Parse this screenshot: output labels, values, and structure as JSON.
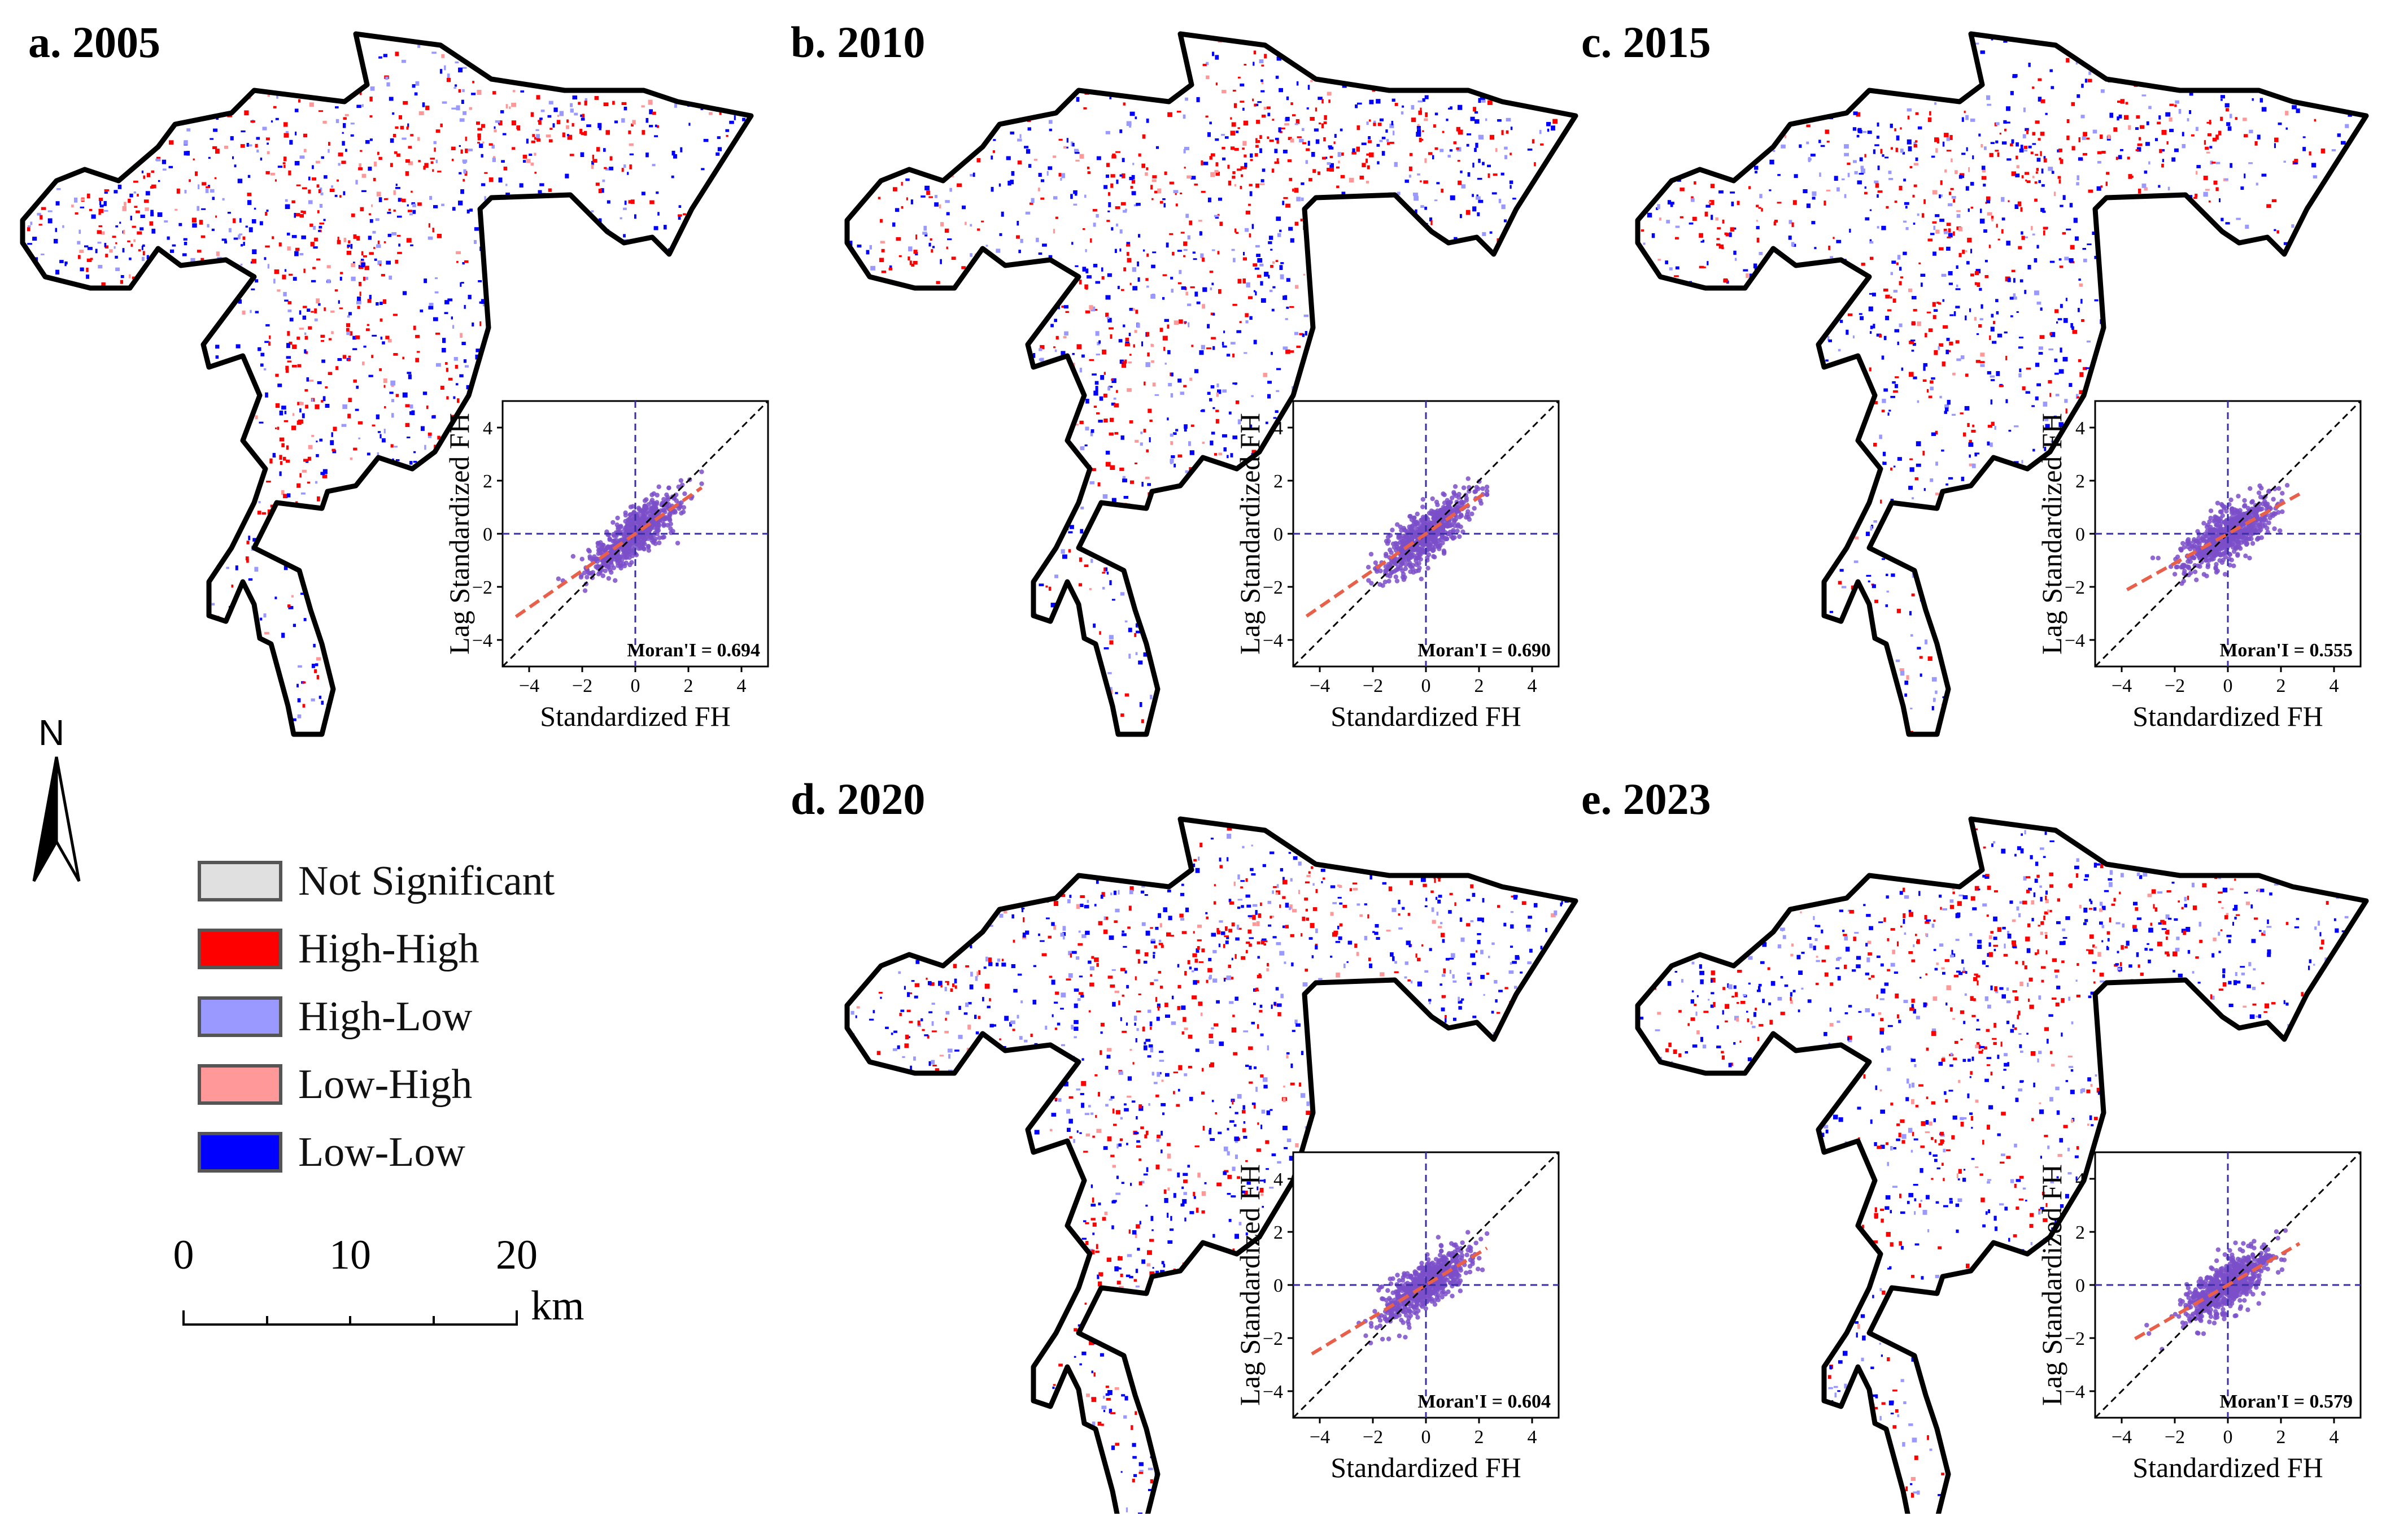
{
  "panels": [
    {
      "id": "a",
      "title": "a. 2005",
      "moran_label": "Moran'I = 0.694",
      "moran_i": 0.694,
      "red_weight": 0.55
    },
    {
      "id": "b",
      "title": "b. 2010",
      "moran_label": "Moran'I = 0.690",
      "moran_i": 0.69,
      "red_weight": 0.45
    },
    {
      "id": "c",
      "title": "c. 2015",
      "moran_label": "Moran'I = 0.555",
      "moran_i": 0.555,
      "red_weight": 0.38
    },
    {
      "id": "d",
      "title": "d. 2020",
      "moran_label": "Moran'I = 0.604",
      "moran_i": 0.604,
      "red_weight": 0.4
    },
    {
      "id": "e",
      "title": "e. 2023",
      "moran_label": "Moran'I = 0.579",
      "moran_i": 0.579,
      "red_weight": 0.4
    }
  ],
  "legend": {
    "items": [
      {
        "label": "Not Significant",
        "color": "#e0e0e0"
      },
      {
        "label": "High-High",
        "color": "#ff0000"
      },
      {
        "label": "High-Low",
        "color": "#9999ff"
      },
      {
        "label": "Low-High",
        "color": "#ff9999"
      },
      {
        "label": "Low-Low",
        "color": "#0000ff"
      }
    ]
  },
  "north_arrow": {
    "label": "N"
  },
  "scale_bar": {
    "ticks": [
      "0",
      "10",
      "20"
    ],
    "unit": "km"
  },
  "chart_data": [
    {
      "type": "scatter",
      "panel": "a. 2005",
      "xlabel": "Standardized FH",
      "ylabel": "Lag Standardized FH",
      "xlim": [
        -5,
        5
      ],
      "ylim": [
        -5,
        5
      ],
      "xticks": [
        -4,
        -2,
        0,
        2,
        4
      ],
      "yticks": [
        -4,
        -2,
        0,
        2,
        4
      ],
      "tick_labels": [
        "−4",
        "−2",
        "0",
        "2",
        "4"
      ],
      "annotation": "Moran'I = 0.694",
      "regression_slope": 0.694,
      "reference_line_slope": 1,
      "point_cloud_x_range": [
        -4.5,
        2.5
      ]
    },
    {
      "type": "scatter",
      "panel": "b. 2010",
      "xlabel": "Standardized FH",
      "ylabel": "Lag Standardized FH",
      "xlim": [
        -5,
        5
      ],
      "ylim": [
        -5,
        5
      ],
      "xticks": [
        -4,
        -2,
        0,
        2,
        4
      ],
      "yticks": [
        -4,
        -2,
        0,
        2,
        4
      ],
      "tick_labels": [
        "−4",
        "−2",
        "0",
        "2",
        "4"
      ],
      "annotation": "Moran'I = 0.690",
      "regression_slope": 0.69,
      "reference_line_slope": 1,
      "point_cloud_x_range": [
        -4.5,
        2.3
      ]
    },
    {
      "type": "scatter",
      "panel": "c. 2015",
      "xlabel": "Standardized FH",
      "ylabel": "Lag Standardized FH",
      "xlim": [
        -5,
        5
      ],
      "ylim": [
        -5,
        5
      ],
      "xticks": [
        -4,
        -2,
        0,
        2,
        4
      ],
      "yticks": [
        -4,
        -2,
        0,
        2,
        4
      ],
      "tick_labels": [
        "−4",
        "−2",
        "0",
        "2",
        "4"
      ],
      "annotation": "Moran'I = 0.555",
      "regression_slope": 0.555,
      "reference_line_slope": 1,
      "point_cloud_x_range": [
        -3.8,
        2.7
      ]
    },
    {
      "type": "scatter",
      "panel": "d. 2020",
      "xlabel": "Standardized FH",
      "ylabel": "Lag Standardized FH",
      "xlim": [
        -5,
        5
      ],
      "ylim": [
        -5,
        5
      ],
      "xticks": [
        -4,
        -2,
        0,
        2,
        4
      ],
      "yticks": [
        -4,
        -2,
        0,
        2,
        4
      ],
      "tick_labels": [
        "−4",
        "−2",
        "0",
        "2",
        "4"
      ],
      "annotation": "Moran'I = 0.604",
      "regression_slope": 0.604,
      "reference_line_slope": 1,
      "point_cloud_x_range": [
        -4.3,
        2.3
      ]
    },
    {
      "type": "scatter",
      "panel": "e. 2023",
      "xlabel": "Standardized FH",
      "ylabel": "Lag Standardized FH",
      "xlim": [
        -5,
        5
      ],
      "ylim": [
        -5,
        5
      ],
      "xticks": [
        -4,
        -2,
        0,
        2,
        4
      ],
      "yticks": [
        -4,
        -2,
        0,
        2,
        4
      ],
      "tick_labels": [
        "−4",
        "−2",
        "0",
        "2",
        "4"
      ],
      "annotation": "Moran'I = 0.579",
      "regression_slope": 0.579,
      "reference_line_slope": 1,
      "point_cloud_x_range": [
        -3.5,
        2.7
      ]
    }
  ]
}
